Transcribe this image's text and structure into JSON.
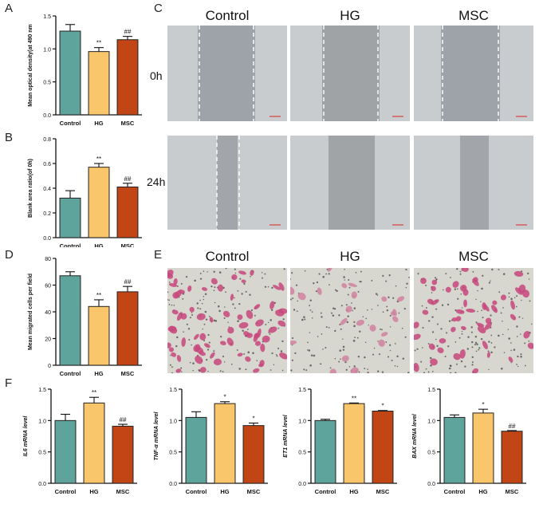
{
  "panels": {
    "A": "A",
    "B": "B",
    "C": "C",
    "D": "D",
    "E": "E",
    "F": "F"
  },
  "colors": {
    "control": "#5fa49c",
    "hg": "#f9c66c",
    "msc": "#c24516"
  },
  "panel_c": {
    "columns": [
      "Control",
      "HG",
      "MSC"
    ],
    "rows": [
      "0h",
      "24h"
    ]
  },
  "panel_e": {
    "columns": [
      "Control",
      "HG",
      "MSC"
    ]
  },
  "chart_data": [
    {
      "id": "A",
      "type": "bar",
      "categories": [
        "Control",
        "HG",
        "MSC"
      ],
      "values": [
        1.27,
        0.96,
        1.14
      ],
      "errors": [
        0.1,
        0.06,
        0.05
      ],
      "annotations": [
        "",
        "**",
        "##"
      ],
      "ylabel": "Mean optical density(at 490 nm",
      "ylim": [
        0,
        1.5
      ],
      "yticks": [
        "0.0",
        "0.5",
        "1.0",
        "1.5"
      ]
    },
    {
      "id": "B",
      "type": "bar",
      "categories": [
        "Control",
        "HG",
        "MSC"
      ],
      "values": [
        0.32,
        0.57,
        0.41
      ],
      "errors": [
        0.06,
        0.03,
        0.03
      ],
      "annotations": [
        "",
        "**",
        "##"
      ],
      "ylabel": "Blank area ratio(of 0h)",
      "ylim": [
        0,
        0.8
      ],
      "yticks": [
        "0.0",
        "0.2",
        "0.4",
        "0.6",
        "0.8"
      ]
    },
    {
      "id": "D",
      "type": "bar",
      "categories": [
        "Control",
        "HG",
        "MSC"
      ],
      "values": [
        67,
        44,
        55
      ],
      "errors": [
        3,
        5,
        4
      ],
      "annotations": [
        "",
        "**",
        "##"
      ],
      "ylabel": "Mean migrated cells per field",
      "ylim": [
        0,
        80
      ],
      "yticks": [
        "0",
        "20",
        "40",
        "60",
        "80"
      ]
    },
    {
      "id": "F1",
      "type": "bar",
      "categories": [
        "Control",
        "HG",
        "MSC"
      ],
      "values": [
        1.0,
        1.28,
        0.91
      ],
      "errors": [
        0.1,
        0.09,
        0.03
      ],
      "annotations": [
        "",
        "**",
        "##"
      ],
      "ylabel": "IL6 mRNA level",
      "ylim": [
        0,
        1.5
      ],
      "yticks": [
        "0.0",
        "0.5",
        "1.0",
        "1.5"
      ]
    },
    {
      "id": "F2",
      "type": "bar",
      "categories": [
        "Control",
        "HG",
        "MSC"
      ],
      "values": [
        1.05,
        1.27,
        0.92
      ],
      "errors": [
        0.09,
        0.03,
        0.04
      ],
      "annotations": [
        "",
        "*",
        "*"
      ],
      "ylabel": "TNF-α mRNA level",
      "ylim": [
        0,
        1.5
      ],
      "yticks": [
        "0.0",
        "0.5",
        "1.0",
        "1.5"
      ]
    },
    {
      "id": "F3",
      "type": "bar",
      "categories": [
        "Control",
        "HG",
        "MSC"
      ],
      "values": [
        1.0,
        1.27,
        1.15
      ],
      "errors": [
        0.02,
        0.01,
        0.01
      ],
      "annotations": [
        "",
        "**",
        "*"
      ],
      "ylabel": "ET1 mRNA level",
      "ylim": [
        0,
        1.5
      ],
      "yticks": [
        "0.0",
        "0.5",
        "1.0",
        "1.5"
      ]
    },
    {
      "id": "F4",
      "type": "bar",
      "categories": [
        "Control",
        "HG",
        "MSC"
      ],
      "values": [
        1.05,
        1.12,
        0.83
      ],
      "errors": [
        0.04,
        0.06,
        0.01
      ],
      "annotations": [
        "",
        "*",
        "##"
      ],
      "ylabel": "BAX mRNA level",
      "ylim": [
        0,
        1.5
      ],
      "yticks": [
        "0.0",
        "0.5",
        "1.0",
        "1.5"
      ]
    }
  ]
}
